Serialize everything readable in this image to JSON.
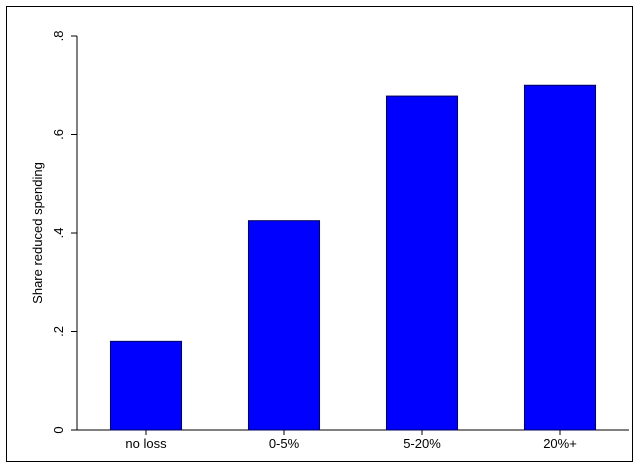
{
  "chart_data": {
    "type": "bar",
    "title": "",
    "xlabel": "",
    "ylabel": "Share reduced spending",
    "categories": [
      "no loss",
      "0-5%",
      "5-20%",
      "20%+"
    ],
    "values": [
      0.18,
      0.425,
      0.678,
      0.7
    ],
    "ylim": [
      0,
      0.8
    ],
    "yticks": [
      0,
      0.2,
      0.4,
      0.6,
      0.8
    ],
    "ytick_labels": [
      "0",
      ".2",
      ".4",
      ".6",
      ".8"
    ],
    "grid": false,
    "legend": "none",
    "bar_color": "#0000ff",
    "bar_edge_color": "#00005a"
  }
}
